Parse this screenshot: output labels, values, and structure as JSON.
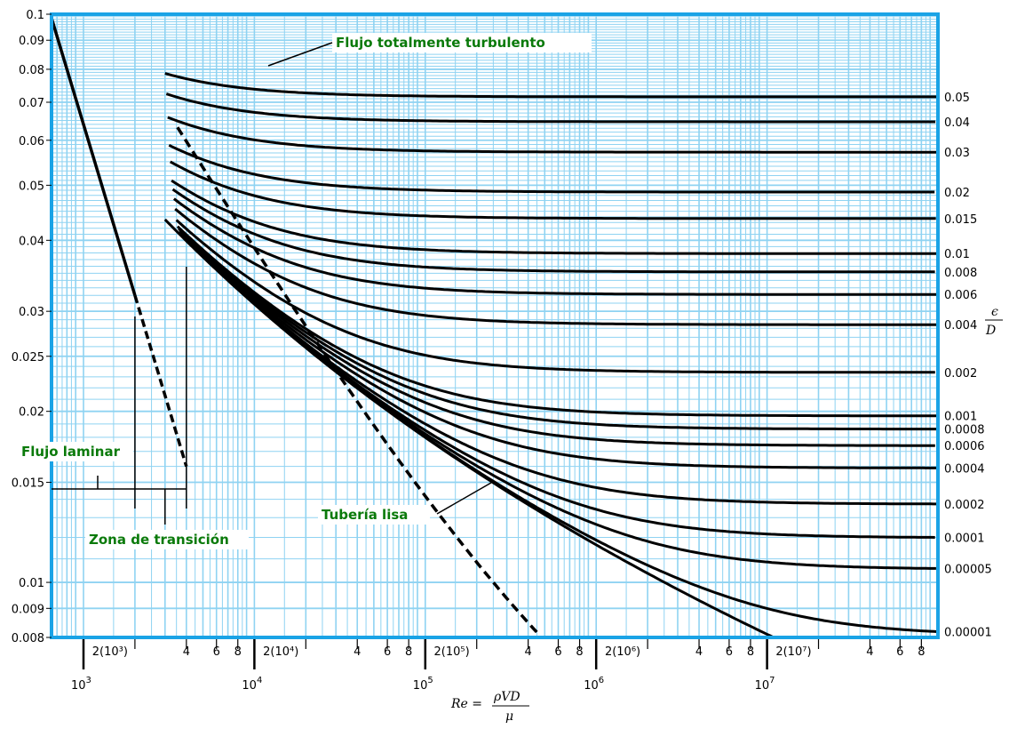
{
  "chart_data": {
    "type": "line",
    "title": "",
    "x_scale": "log",
    "y_scale": "log",
    "xlim": [
      650,
      100000000
    ],
    "ylim": [
      0.008,
      0.1
    ],
    "grid": true,
    "x_major_ticks": [
      {
        "value": 1000,
        "base": "10",
        "exp": "3"
      },
      {
        "value": 10000,
        "base": "10",
        "exp": "4"
      },
      {
        "value": 100000,
        "base": "10",
        "exp": "5"
      },
      {
        "value": 1000000,
        "base": "10",
        "exp": "6"
      },
      {
        "value": 10000000,
        "base": "10",
        "exp": "7"
      }
    ],
    "x_minor_labels": [
      {
        "value": 2000,
        "label": "2(10³)"
      },
      {
        "value": 4000,
        "label": "4"
      },
      {
        "value": 6000,
        "label": "6"
      },
      {
        "value": 8000,
        "label": "8"
      },
      {
        "value": 20000,
        "label": "2(10⁴)"
      },
      {
        "value": 40000,
        "label": "4"
      },
      {
        "value": 60000,
        "label": "6"
      },
      {
        "value": 80000,
        "label": "8"
      },
      {
        "value": 200000,
        "label": "2(10⁵)"
      },
      {
        "value": 400000,
        "label": "4"
      },
      {
        "value": 600000,
        "label": "6"
      },
      {
        "value": 800000,
        "label": "8"
      },
      {
        "value": 2000000,
        "label": "2(10⁶)"
      },
      {
        "value": 4000000,
        "label": "4"
      },
      {
        "value": 6000000,
        "label": "6"
      },
      {
        "value": 8000000,
        "label": "8"
      },
      {
        "value": 20000000,
        "label": "2(10⁷)"
      },
      {
        "value": 40000000,
        "label": "4"
      },
      {
        "value": 60000000,
        "label": "6"
      },
      {
        "value": 80000000,
        "label": "8"
      }
    ],
    "y_ticks": [
      {
        "value": 0.1,
        "label": "0.1"
      },
      {
        "value": 0.09,
        "label": "0.09"
      },
      {
        "value": 0.08,
        "label": "0.08"
      },
      {
        "value": 0.07,
        "label": "0.07"
      },
      {
        "value": 0.06,
        "label": "0.06"
      },
      {
        "value": 0.05,
        "label": "0.05"
      },
      {
        "value": 0.04,
        "label": "0.04"
      },
      {
        "value": 0.03,
        "label": "0.03"
      },
      {
        "value": 0.025,
        "label": "0.025"
      },
      {
        "value": 0.02,
        "label": "0.02"
      },
      {
        "value": 0.015,
        "label": "0.015"
      },
      {
        "value": 0.01,
        "label": "0.01"
      },
      {
        "value": 0.009,
        "label": "0.009"
      },
      {
        "value": 0.008,
        "label": "0.008"
      }
    ],
    "xlabel": {
      "prefix": "Re =",
      "numerator": "ρVD",
      "denominator": "μ"
    },
    "right_axis_label": {
      "numerator": "ϵ",
      "denominator": "D"
    },
    "roughness_curves": [
      {
        "label": "0.05",
        "value": 0.05
      },
      {
        "label": "0.04",
        "value": 0.04
      },
      {
        "label": "0.03",
        "value": 0.03
      },
      {
        "label": "0.02",
        "value": 0.02
      },
      {
        "label": "0.015",
        "value": 0.015
      },
      {
        "label": "0.01",
        "value": 0.01
      },
      {
        "label": "0.008",
        "value": 0.008
      },
      {
        "label": "0.006",
        "value": 0.006
      },
      {
        "label": "0.004",
        "value": 0.004
      },
      {
        "label": "0.002",
        "value": 0.002
      },
      {
        "label": "0.001",
        "value": 0.001
      },
      {
        "label": "0.0008",
        "value": 0.0008
      },
      {
        "label": "0.0006",
        "value": 0.0006
      },
      {
        "label": "0.0004",
        "value": 0.0004
      },
      {
        "label": "0.0002",
        "value": 0.0002
      },
      {
        "label": "0.0001",
        "value": 0.0001
      },
      {
        "label": "0.00005",
        "value": 5e-05
      },
      {
        "label": "0.00001",
        "value": 1e-05
      }
    ],
    "laminar_line": {
      "formula": "f = 64/Re",
      "solid_to": 2000,
      "dashed_to": 4000
    },
    "annotations": {
      "fully_turbulent": "Flujo totalmente turbulento",
      "smooth_pipe": "Tubería lisa",
      "laminar": "Flujo laminar",
      "transition": "Zona de transición"
    }
  }
}
